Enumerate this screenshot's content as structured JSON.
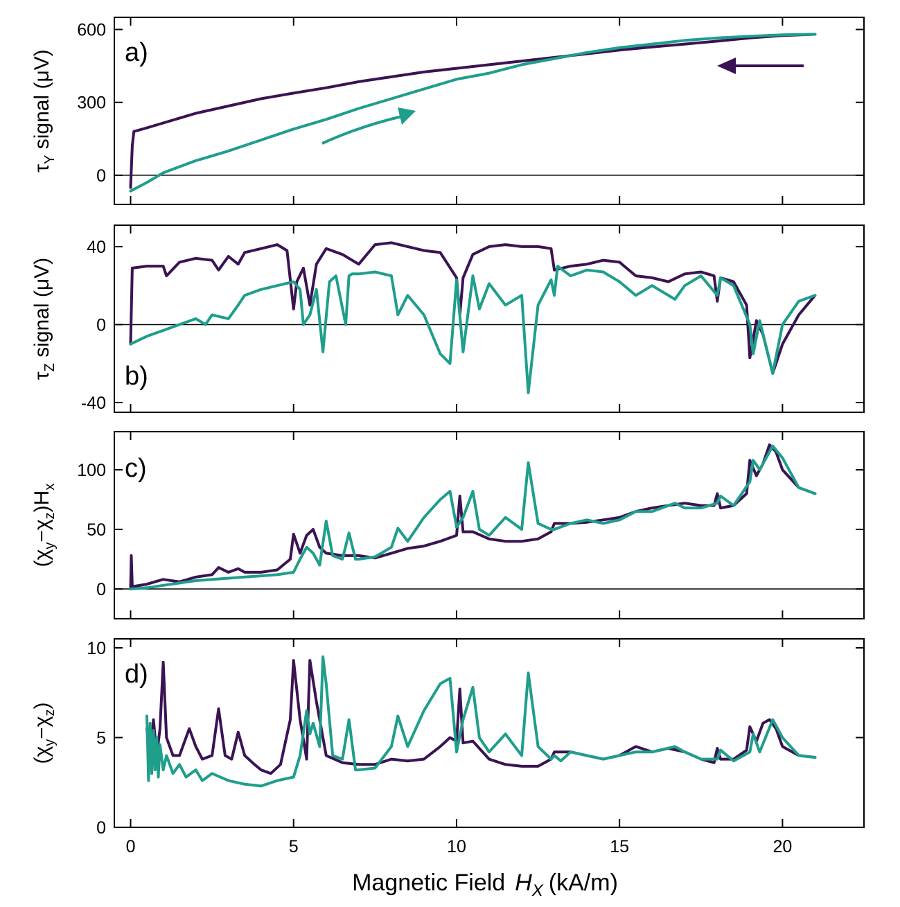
{
  "figure": {
    "xlabel_text": "Magnetic Field",
    "xlabel_var": "H",
    "xlabel_sub": "X",
    "xlabel_unit": "(kA/m)",
    "x_ticks": [
      "0",
      "5",
      "10",
      "15",
      "20"
    ],
    "colors": {
      "down_sweep": "#3b1354",
      "up_sweep": "#1f9e8b"
    }
  },
  "chart_data": [
    {
      "type": "line",
      "panel_label": "a)",
      "ylabel": {
        "sym": "τ",
        "sub": "Y",
        "rest": " signal (μV)"
      },
      "xlim": [
        -0.5,
        22.5
      ],
      "ylim": [
        -120,
        650
      ],
      "y_ticks": [
        "0",
        "300",
        "600"
      ],
      "y_tick_values": [
        0,
        300,
        600
      ],
      "zero_line": true,
      "annotations": [
        {
          "type": "arrow",
          "direction": "left",
          "series": "down"
        },
        {
          "type": "arrow",
          "direction": "up-right",
          "series": "up"
        }
      ],
      "series": [
        {
          "name": "down",
          "x": [
            21,
            20,
            19,
            18,
            17,
            16,
            15,
            14,
            13,
            12,
            11,
            10,
            9,
            8,
            7,
            6,
            5,
            4,
            3,
            2,
            1,
            0.5,
            0.1,
            0.05,
            0
          ],
          "y": [
            580,
            575,
            565,
            552,
            540,
            528,
            515,
            500,
            485,
            470,
            455,
            440,
            425,
            405,
            385,
            360,
            338,
            315,
            285,
            255,
            215,
            195,
            180,
            120,
            -50
          ]
        },
        {
          "name": "up",
          "x": [
            0,
            0.5,
            1,
            2,
            3,
            4,
            5,
            6,
            7,
            8,
            9,
            10,
            11,
            12,
            13,
            14,
            15,
            16,
            17,
            18,
            19,
            20,
            21
          ],
          "y": [
            -65,
            -30,
            10,
            60,
            100,
            145,
            190,
            230,
            275,
            315,
            355,
            395,
            420,
            455,
            480,
            505,
            525,
            540,
            555,
            565,
            572,
            578,
            580
          ]
        }
      ]
    },
    {
      "type": "line",
      "panel_label": "b)",
      "ylabel": {
        "sym": "τ",
        "sub": "Z",
        "rest": " signal (μV)"
      },
      "xlim": [
        -0.5,
        22.5
      ],
      "ylim": [
        -45,
        51
      ],
      "y_ticks": [
        "-40",
        "0",
        "40"
      ],
      "y_tick_values": [
        -40,
        0,
        40
      ],
      "zero_line": true,
      "series": [
        {
          "name": "down",
          "x": [
            0,
            0.05,
            0.5,
            1,
            1.1,
            1.5,
            2,
            2.5,
            2.7,
            3,
            3.3,
            3.5,
            4,
            4.5,
            4.8,
            5.0,
            5.1,
            5.3,
            5.5,
            5.7,
            6,
            6.5,
            7,
            7.5,
            8,
            8.5,
            9,
            9.5,
            10,
            10.1,
            10.2,
            10.5,
            11,
            11.5,
            12,
            12.5,
            12.9,
            13,
            13.5,
            14,
            14.5,
            15,
            15.5,
            16,
            16.5,
            17,
            17.5,
            17.9,
            18,
            18.1,
            18.5,
            18.9,
            19.0,
            19.2,
            19.4,
            19.7,
            20,
            20.5,
            21
          ],
          "y": [
            -10,
            29,
            30,
            30,
            25,
            32,
            34,
            33,
            28,
            35,
            31,
            37,
            39,
            41,
            38,
            8,
            22,
            29,
            10,
            31,
            39,
            36,
            31,
            41,
            42,
            40,
            38,
            37,
            24,
            5,
            24,
            36,
            40,
            41,
            40,
            40,
            39,
            28,
            30,
            31,
            33,
            32,
            25,
            24,
            22,
            26,
            27,
            25,
            12,
            24,
            22,
            10,
            -17,
            2,
            -5,
            -25,
            -10,
            5,
            15
          ]
        },
        {
          "name": "up",
          "x": [
            0,
            0.5,
            1,
            1.5,
            2,
            2.3,
            2.5,
            3,
            3.3,
            3.5,
            4,
            4.5,
            5,
            5.2,
            5.3,
            5.5,
            5.7,
            5.9,
            6.1,
            6.3,
            6.6,
            6.7,
            6.8,
            7,
            7.5,
            8,
            8.2,
            8.5,
            9,
            9.5,
            9.8,
            10,
            10.2,
            10.5,
            10.7,
            11,
            11.5,
            12,
            12.2,
            12.5,
            12.9,
            13,
            13.1,
            13.5,
            14,
            14.5,
            15,
            15.5,
            16,
            16.7,
            17,
            17.5,
            18,
            18.1,
            18.5,
            19,
            19.1,
            19.3,
            19.7,
            20,
            20.5,
            21
          ],
          "y": [
            -10,
            -6,
            -3,
            0,
            3,
            0,
            5,
            3,
            10,
            15,
            18,
            20,
            22,
            18,
            0,
            5,
            18,
            -14,
            22,
            25,
            0,
            25,
            26,
            26,
            27,
            25,
            5,
            15,
            5,
            -15,
            -20,
            23,
            -14,
            25,
            8,
            21,
            10,
            15,
            -35,
            10,
            23,
            15,
            30,
            25,
            28,
            27,
            22,
            15,
            20,
            13,
            20,
            25,
            15,
            24,
            20,
            0,
            -15,
            2,
            -25,
            0,
            12,
            15
          ]
        }
      ]
    },
    {
      "type": "line",
      "panel_label": "c)",
      "ylabel": {
        "pre": "(χ",
        "sub1": "y",
        "mid": "−χ",
        "sub2": "z",
        "post": ")H",
        "sub3": "x"
      },
      "xlim": [
        -0.5,
        22.5
      ],
      "ylim": [
        -25,
        132
      ],
      "y_ticks": [
        "0",
        "50",
        "100"
      ],
      "y_tick_values": [
        0,
        50,
        100
      ],
      "zero_line": true,
      "series": [
        {
          "name": "down",
          "x": [
            0,
            0.02,
            0.05,
            0.5,
            1,
            1.5,
            2,
            2.5,
            2.7,
            3,
            3.3,
            3.5,
            4,
            4.5,
            4.9,
            5.0,
            5.2,
            5.4,
            5.6,
            5.8,
            6,
            6.5,
            7,
            7.5,
            8,
            8.5,
            9,
            9.5,
            10,
            10.1,
            10.2,
            10.5,
            11,
            11.5,
            12,
            12.5,
            12.9,
            13,
            13.5,
            14,
            14.5,
            15,
            15.5,
            16,
            16.5,
            17,
            17.5,
            17.9,
            18,
            18.1,
            18.5,
            18.9,
            19.0,
            19.2,
            19.4,
            19.6,
            19.8,
            20,
            20.5,
            21
          ],
          "y": [
            0,
            28,
            2,
            4,
            8,
            6,
            10,
            12,
            18,
            14,
            17,
            14,
            14,
            16,
            25,
            46,
            30,
            45,
            50,
            35,
            30,
            28,
            28,
            26,
            30,
            34,
            36,
            40,
            45,
            78,
            48,
            48,
            42,
            40,
            40,
            42,
            48,
            55,
            55,
            56,
            58,
            60,
            65,
            68,
            70,
            72,
            70,
            70,
            80,
            68,
            70,
            80,
            108,
            95,
            105,
            121,
            115,
            100,
            85,
            80
          ]
        },
        {
          "name": "up",
          "x": [
            0,
            0.5,
            1,
            1.5,
            2,
            2.5,
            3,
            3.5,
            4,
            4.5,
            5,
            5.2,
            5.4,
            5.6,
            5.8,
            6.0,
            6.2,
            6.5,
            6.7,
            6.9,
            7,
            7.5,
            8,
            8.2,
            8.5,
            9,
            9.5,
            9.8,
            10,
            10.2,
            10.5,
            10.7,
            11,
            11.5,
            12,
            12.2,
            12.5,
            12.9,
            13,
            13.5,
            14,
            14.5,
            15,
            15.5,
            16,
            16.7,
            17,
            17.5,
            18,
            18.1,
            18.5,
            19,
            19.1,
            19.3,
            19.7,
            20,
            20.5,
            21
          ],
          "y": [
            0,
            1,
            3,
            5,
            7,
            8,
            9,
            10,
            11,
            12,
            14,
            25,
            35,
            30,
            20,
            57,
            28,
            25,
            47,
            25,
            25,
            27,
            35,
            51,
            40,
            60,
            75,
            82,
            52,
            60,
            82,
            50,
            45,
            60,
            50,
            106,
            55,
            50,
            50,
            55,
            58,
            55,
            58,
            65,
            65,
            72,
            68,
            68,
            72,
            78,
            70,
            90,
            108,
            100,
            120,
            110,
            85,
            80
          ]
        }
      ]
    },
    {
      "type": "line",
      "panel_label": "d)",
      "ylabel": {
        "pre": "(χ",
        "sub1": "y",
        "mid": "−χ",
        "sub2": "z",
        "post": ")"
      },
      "xlim": [
        -0.5,
        22.5
      ],
      "ylim": [
        0,
        10.5
      ],
      "y_ticks": [
        "0",
        "5",
        "10"
      ],
      "y_tick_values": [
        0,
        5,
        10
      ],
      "zero_line": false,
      "series": [
        {
          "name": "down",
          "x": [
            0.5,
            0.6,
            0.7,
            0.8,
            0.9,
            1.0,
            1.1,
            1.3,
            1.5,
            1.8,
            2.0,
            2.2,
            2.5,
            2.7,
            2.9,
            3.1,
            3.3,
            3.5,
            3.8,
            4.0,
            4.3,
            4.6,
            4.9,
            5.0,
            5.2,
            5.4,
            5.5,
            5.7,
            6,
            6.5,
            7,
            7.5,
            8,
            8.5,
            9,
            9.5,
            9.8,
            10,
            10.1,
            10.2,
            10.5,
            11,
            11.5,
            12,
            12.5,
            12.9,
            13,
            13.5,
            14,
            14.5,
            15,
            15.5,
            16,
            16.5,
            17,
            17.5,
            17.9,
            18,
            18.1,
            18.5,
            18.9,
            19.0,
            19.2,
            19.4,
            19.6,
            19.8,
            20,
            20.5,
            21
          ],
          "y": [
            5.5,
            3.5,
            6.0,
            4.0,
            5.5,
            9.2,
            5.0,
            4.0,
            4.0,
            5.5,
            4.5,
            3.8,
            4.0,
            6.6,
            4.0,
            3.8,
            5.3,
            4.0,
            3.5,
            3.2,
            3.0,
            3.5,
            6.0,
            9.3,
            6.0,
            3.8,
            9.3,
            7.0,
            4.0,
            3.6,
            3.5,
            3.5,
            3.8,
            3.7,
            3.8,
            4.5,
            5.0,
            4.8,
            7.7,
            4.7,
            4.8,
            3.8,
            3.5,
            3.4,
            3.4,
            3.8,
            4.2,
            4.2,
            4.0,
            3.8,
            4.0,
            4.5,
            4.2,
            4.4,
            4.2,
            3.8,
            3.6,
            4.4,
            3.8,
            3.8,
            4.3,
            5.6,
            4.8,
            5.8,
            6.0,
            5.5,
            4.5,
            4.0,
            3.9
          ]
        },
        {
          "name": "up",
          "x": [
            0.5,
            0.55,
            0.6,
            0.65,
            0.7,
            0.75,
            0.8,
            0.85,
            0.9,
            1.0,
            1.1,
            1.3,
            1.5,
            1.7,
            2.0,
            2.2,
            2.5,
            3.0,
            3.5,
            4.0,
            4.5,
            5.0,
            5.2,
            5.4,
            5.5,
            5.6,
            5.8,
            5.9,
            6.0,
            6.2,
            6.5,
            6.7,
            6.9,
            7,
            7.5,
            8,
            8.2,
            8.5,
            9,
            9.5,
            9.8,
            10,
            10.2,
            10.5,
            10.7,
            11,
            11.5,
            12,
            12.2,
            12.5,
            12.9,
            13,
            13.2,
            13.5,
            14,
            14.5,
            15,
            15.5,
            16,
            16.7,
            17,
            17.5,
            18,
            18.1,
            18.5,
            19,
            19.1,
            19.3,
            19.7,
            20,
            20.5,
            21
          ],
          "y": [
            6.2,
            2.6,
            5.8,
            3.0,
            5.4,
            3.2,
            5.0,
            2.8,
            4.6,
            3.2,
            4.0,
            3.0,
            3.5,
            2.8,
            3.2,
            2.6,
            3.0,
            2.6,
            2.4,
            2.3,
            2.6,
            2.8,
            4.0,
            6.5,
            5.2,
            5.8,
            4.5,
            9.5,
            8.0,
            4.0,
            3.8,
            6.0,
            3.2,
            3.2,
            3.3,
            4.5,
            6.2,
            4.5,
            6.5,
            8.0,
            8.3,
            4.2,
            6.0,
            7.8,
            5.0,
            4.2,
            5.2,
            4.0,
            8.6,
            4.5,
            3.8,
            4.0,
            3.7,
            4.2,
            4.0,
            3.8,
            4.0,
            4.2,
            4.2,
            4.5,
            4.2,
            3.8,
            3.8,
            4.3,
            3.7,
            4.2,
            5.2,
            4.2,
            6.0,
            5.0,
            4.0,
            3.9
          ]
        }
      ]
    }
  ]
}
